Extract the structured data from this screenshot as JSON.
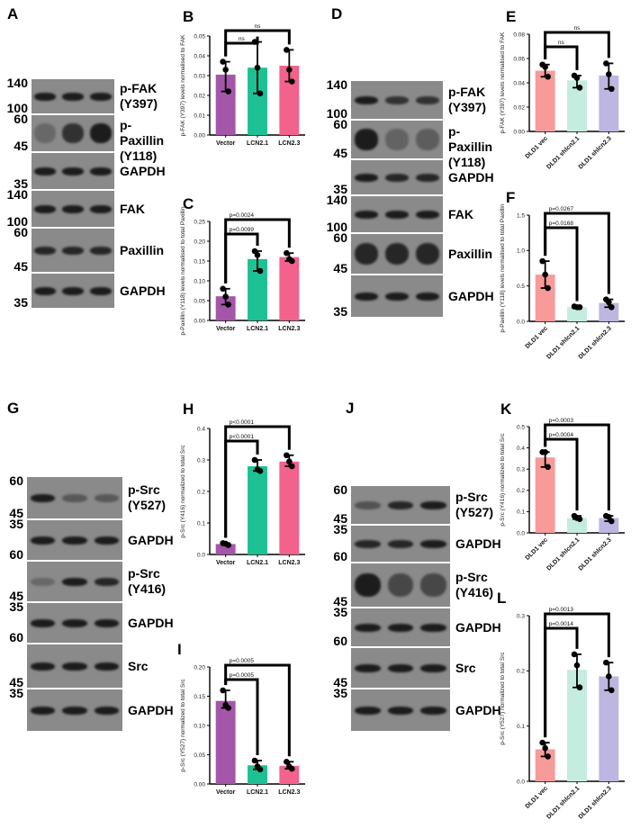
{
  "panels": {
    "A": {
      "letter": "A",
      "lanes": [
        "Vector",
        "LCN2.1",
        "LCN2.3"
      ],
      "strips": [
        {
          "protein": "p-FAK\n(Y397)",
          "mw_top": "140",
          "mw_bottom": "100"
        },
        {
          "protein": "p-Paxillin\n(Y118)",
          "mw_top": "60",
          "mw_bottom": "45"
        },
        {
          "protein": "GAPDH",
          "mw_top": "",
          "mw_bottom": "35"
        },
        {
          "protein": "FAK",
          "mw_top": "140",
          "mw_bottom": "100"
        },
        {
          "protein": "Paxillin",
          "mw_top": "60",
          "mw_bottom": "45"
        },
        {
          "protein": "GAPDH",
          "mw_top": "",
          "mw_bottom": "35"
        }
      ]
    },
    "D": {
      "letter": "D",
      "lanes": [
        "DLD1 vec",
        "DLD1\nshlcn2.1",
        "DLD1\nshlcn2.3"
      ],
      "strips": [
        {
          "protein": "p-FAK\n(Y397)",
          "mw_top": "140",
          "mw_bottom": "100"
        },
        {
          "protein": "p-Paxillin\n(Y118)",
          "mw_top": "60",
          "mw_bottom": "45"
        },
        {
          "protein": "GAPDH",
          "mw_top": "",
          "mw_bottom": "35"
        },
        {
          "protein": "FAK",
          "mw_top": "140",
          "mw_bottom": "100"
        },
        {
          "protein": "Paxillin",
          "mw_top": "60",
          "mw_bottom": "45"
        },
        {
          "protein": "GAPDH",
          "mw_top": "",
          "mw_bottom": "35"
        }
      ]
    },
    "G": {
      "letter": "G",
      "lanes": [
        "Vector",
        "LCN2.1",
        "LCN2.3"
      ],
      "strips": [
        {
          "protein": "p-Src\n(Y527)",
          "mw_top": "60",
          "mw_bottom": "45"
        },
        {
          "protein": "GAPDH",
          "mw_top": "35",
          "mw_bottom": "60"
        },
        {
          "protein": "p-Src\n(Y416)",
          "mw_top": "",
          "mw_bottom": "45"
        },
        {
          "protein": "GAPDH",
          "mw_top": "35",
          "mw_bottom": "60"
        },
        {
          "protein": "Src",
          "mw_top": "",
          "mw_bottom": "45"
        },
        {
          "protein": "GAPDH",
          "mw_top": "35",
          "mw_bottom": ""
        }
      ]
    },
    "J": {
      "letter": "J",
      "lanes": [
        "DLD1 vec",
        "DLD1\nshlcn2.1",
        "DLD1\nshlcn2.3"
      ],
      "strips": [
        {
          "protein": "p-Src\n(Y527)",
          "mw_top": "60",
          "mw_bottom": "45"
        },
        {
          "protein": "GAPDH",
          "mw_top": "35",
          "mw_bottom": "60"
        },
        {
          "protein": "p-Src\n(Y416)",
          "mw_top": "",
          "mw_bottom": "45"
        },
        {
          "protein": "GAPDH",
          "mw_top": "35",
          "mw_bottom": "60"
        },
        {
          "protein": "Src",
          "mw_top": "",
          "mw_bottom": "45"
        },
        {
          "protein": "GAPDH",
          "mw_top": "35",
          "mw_bottom": ""
        }
      ]
    }
  },
  "colors": {
    "purple": "#a456a8",
    "green": "#1dc193",
    "pink": "#f2628d",
    "salmon": "#f79a9a",
    "mint": "#c4ecdf",
    "lavender": "#bdb6e0"
  },
  "chart_data": [
    {
      "panel": "B",
      "type": "bar",
      "title": "",
      "xlabel": "",
      "ylabel": "p-FAK (Y397) levels normalised to FAK",
      "categories": [
        "Vector",
        "LCN2.1",
        "LCN2.3"
      ],
      "values": [
        0.0305,
        0.034,
        0.035
      ],
      "points": [
        [
          0.037,
          0.033,
          0.022
        ],
        [
          0.047,
          0.034,
          0.021
        ],
        [
          0.043,
          0.033,
          0.027
        ]
      ],
      "ylim": [
        0,
        0.05
      ],
      "yticks": [
        "0.00",
        "0.01",
        "0.02",
        "0.03",
        "0.04",
        "0.05"
      ],
      "colors": [
        "#a456a8",
        "#1dc193",
        "#f2628d"
      ],
      "significance": [
        {
          "pair": [
            0,
            1
          ],
          "label": "ns"
        },
        {
          "pair": [
            0,
            2
          ],
          "label": "ns"
        }
      ],
      "x_rotated": false
    },
    {
      "panel": "C",
      "type": "bar",
      "title": "",
      "xlabel": "",
      "ylabel": "p-Paxillin (Y118) levels normalised to total Paxillin",
      "categories": [
        "Vector",
        "LCN2.1",
        "LCN2.3"
      ],
      "values": [
        0.061,
        0.155,
        0.16
      ],
      "points": [
        [
          0.08,
          0.06,
          0.04
        ],
        [
          0.175,
          0.165,
          0.125
        ],
        [
          0.17,
          0.155,
          0.15
        ]
      ],
      "ylim": [
        0,
        0.25
      ],
      "yticks": [
        "0.00",
        "0.05",
        "0.10",
        "0.15",
        "0.20",
        "0.25"
      ],
      "colors": [
        "#a456a8",
        "#1dc193",
        "#f2628d"
      ],
      "significance": [
        {
          "pair": [
            0,
            1
          ],
          "label": "p=0.0099"
        },
        {
          "pair": [
            0,
            2
          ],
          "label": "p=0.0024"
        }
      ],
      "x_rotated": false
    },
    {
      "panel": "E",
      "type": "bar",
      "title": "",
      "xlabel": "",
      "ylabel": "p-FAK (Y397) levels normalised to FAK",
      "categories": [
        "DLD1 vec",
        "DLD1 shlcn2.1",
        "DLD1 shlcn2.3"
      ],
      "values": [
        0.05,
        0.042,
        0.046
      ],
      "points": [
        [
          0.055,
          0.053,
          0.045
        ],
        [
          0.046,
          0.044,
          0.036
        ],
        [
          0.056,
          0.047,
          0.035
        ]
      ],
      "ylim": [
        0,
        0.08
      ],
      "yticks": [
        "0.00",
        "0.02",
        "0.04",
        "0.06",
        "0.08"
      ],
      "colors": [
        "#f79a9a",
        "#c4ecdf",
        "#bdb6e0"
      ],
      "significance": [
        {
          "pair": [
            0,
            1
          ],
          "label": "ns"
        },
        {
          "pair": [
            0,
            2
          ],
          "label": "ns"
        }
      ],
      "x_rotated": true
    },
    {
      "panel": "F",
      "type": "bar",
      "title": "",
      "xlabel": "",
      "ylabel": "p-Paxillin (Y118) levels normalised to total Paxillin",
      "categories": [
        "DLD1 vec",
        "DLD1 shlcn2.1",
        "DLD1 shlcn2.3"
      ],
      "values": [
        0.66,
        0.2,
        0.26
      ],
      "points": [
        [
          0.85,
          0.66,
          0.47
        ],
        [
          0.21,
          0.2,
          0.2
        ],
        [
          0.31,
          0.27,
          0.2
        ]
      ],
      "ylim": [
        0,
        1.5
      ],
      "yticks": [
        "0.0",
        "0.5",
        "1.0",
        "1.5"
      ],
      "colors": [
        "#f79a9a",
        "#c4ecdf",
        "#bdb6e0"
      ],
      "significance": [
        {
          "pair": [
            0,
            1
          ],
          "label": "p=0.0168"
        },
        {
          "pair": [
            0,
            2
          ],
          "label": "p=0.0267"
        }
      ],
      "x_rotated": true
    },
    {
      "panel": "H",
      "type": "bar",
      "title": "",
      "xlabel": "",
      "ylabel": "p-Src (Y416) normalized to total Src",
      "categories": [
        "Vector",
        "LCN2.1",
        "LCN2.3"
      ],
      "values": [
        0.033,
        0.28,
        0.295
      ],
      "points": [
        [
          0.036,
          0.034,
          0.03
        ],
        [
          0.3,
          0.27,
          0.265
        ],
        [
          0.315,
          0.295,
          0.28
        ]
      ],
      "ylim": [
        0,
        0.4
      ],
      "yticks": [
        "0.0",
        "0.1",
        "0.2",
        "0.3",
        "0.4"
      ],
      "colors": [
        "#a456a8",
        "#1dc193",
        "#f2628d"
      ],
      "significance": [
        {
          "pair": [
            0,
            1
          ],
          "label": "p<0.0001"
        },
        {
          "pair": [
            0,
            2
          ],
          "label": "p<0.0001"
        }
      ],
      "x_rotated": false
    },
    {
      "panel": "I",
      "type": "bar",
      "title": "",
      "xlabel": "",
      "ylabel": "p-Src (Y527) normalized to total Src",
      "categories": [
        "Vector",
        "LCN2.1",
        "LCN2.3"
      ],
      "values": [
        0.142,
        0.032,
        0.031
      ],
      "points": [
        [
          0.16,
          0.135,
          0.13
        ],
        [
          0.04,
          0.03,
          0.025
        ],
        [
          0.038,
          0.03,
          0.026
        ]
      ],
      "ylim": [
        0,
        0.2
      ],
      "yticks": [
        "0.00",
        "0.05",
        "0.10",
        "0.15",
        "0.20"
      ],
      "colors": [
        "#a456a8",
        "#1dc193",
        "#f2628d"
      ],
      "significance": [
        {
          "pair": [
            0,
            1
          ],
          "label": "p=0.0005"
        },
        {
          "pair": [
            0,
            2
          ],
          "label": "p=0.0005"
        }
      ],
      "x_rotated": false
    },
    {
      "panel": "K",
      "type": "bar",
      "title": "",
      "xlabel": "",
      "ylabel": "p-Src (Y416) normalized to total Src",
      "categories": [
        "DLD1 vec",
        "DLD1 shlcn2.1",
        "DLD1 shlcn2.3"
      ],
      "values": [
        0.355,
        0.07,
        0.07
      ],
      "points": [
        [
          0.38,
          0.38,
          0.31
        ],
        [
          0.08,
          0.07,
          0.065
        ],
        [
          0.08,
          0.075,
          0.055
        ]
      ],
      "ylim": [
        0,
        0.5
      ],
      "yticks": [
        "0.0",
        "0.1",
        "0.2",
        "0.3",
        "0.4",
        "0.5"
      ],
      "colors": [
        "#f79a9a",
        "#c4ecdf",
        "#bdb6e0"
      ],
      "significance": [
        {
          "pair": [
            0,
            1
          ],
          "label": "p=0.0004"
        },
        {
          "pair": [
            0,
            2
          ],
          "label": "p=0.0003"
        }
      ],
      "x_rotated": true
    },
    {
      "panel": "L",
      "type": "bar",
      "title": "",
      "xlabel": "",
      "ylabel": "p-Src (Y527) normalized to total Src",
      "categories": [
        "DLD1 vec",
        "DLD1 shlcn2.1",
        "DLD1 shlcn2.3"
      ],
      "values": [
        0.058,
        0.202,
        0.19
      ],
      "points": [
        [
          0.07,
          0.06,
          0.045
        ],
        [
          0.23,
          0.21,
          0.17
        ],
        [
          0.215,
          0.19,
          0.165
        ]
      ],
      "ylim": [
        0,
        0.3
      ],
      "yticks": [
        "0.0",
        "0.1",
        "0.2",
        "0.3"
      ],
      "colors": [
        "#f79a9a",
        "#c4ecdf",
        "#bdb6e0"
      ],
      "significance": [
        {
          "pair": [
            0,
            1
          ],
          "label": "p=0.0014"
        },
        {
          "pair": [
            0,
            2
          ],
          "label": "p=0.0013"
        }
      ],
      "x_rotated": true
    }
  ]
}
